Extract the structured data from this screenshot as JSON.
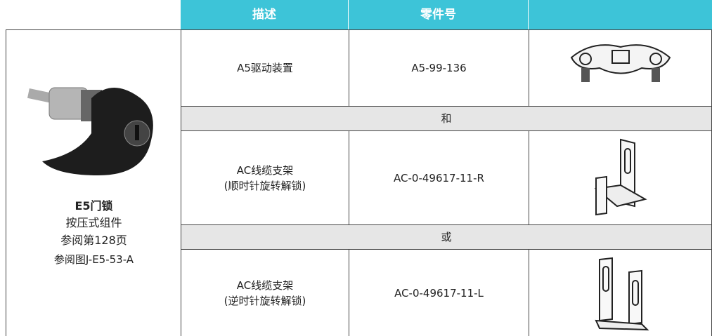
{
  "header": {
    "columns": [
      "描述",
      "零件号"
    ]
  },
  "product": {
    "title": "E5门锁",
    "lines": [
      "按压式组件",
      "参阅第128页",
      "参阅图J-E5-53-A"
    ]
  },
  "table": {
    "rows": [
      {
        "description": [
          "A5驱动装置"
        ],
        "part_number": "A5-99-136"
      },
      {
        "separator": "和"
      },
      {
        "description": [
          "AC线缆支架",
          "(顺时针旋转解锁)"
        ],
        "part_number": "AC-0-49617-11-R"
      },
      {
        "separator": "或"
      },
      {
        "description": [
          "AC线缆支架",
          "(逆时针旋转解锁)"
        ],
        "part_number": "AC-0-49617-11-L"
      }
    ]
  }
}
